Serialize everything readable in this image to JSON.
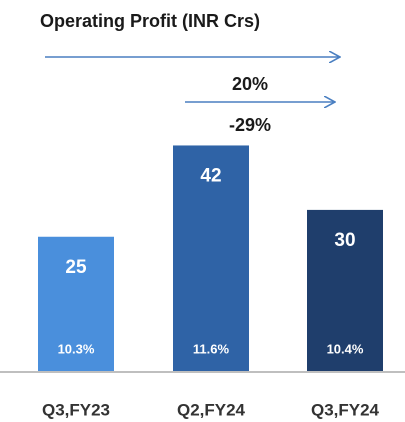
{
  "chart_data": {
    "type": "bar",
    "title": "Operating Profit (INR Crs)",
    "categories": [
      "Q3,FY23",
      "Q2,FY24",
      "Q3,FY24"
    ],
    "values": [
      25,
      42,
      30
    ],
    "colors": [
      "#4a8fdc",
      "#2f63a6",
      "#1f3e6c"
    ],
    "margin_labels": [
      "10.3%",
      "11.6%",
      "10.4%"
    ],
    "annotations": [
      "20%",
      "-29%"
    ]
  }
}
